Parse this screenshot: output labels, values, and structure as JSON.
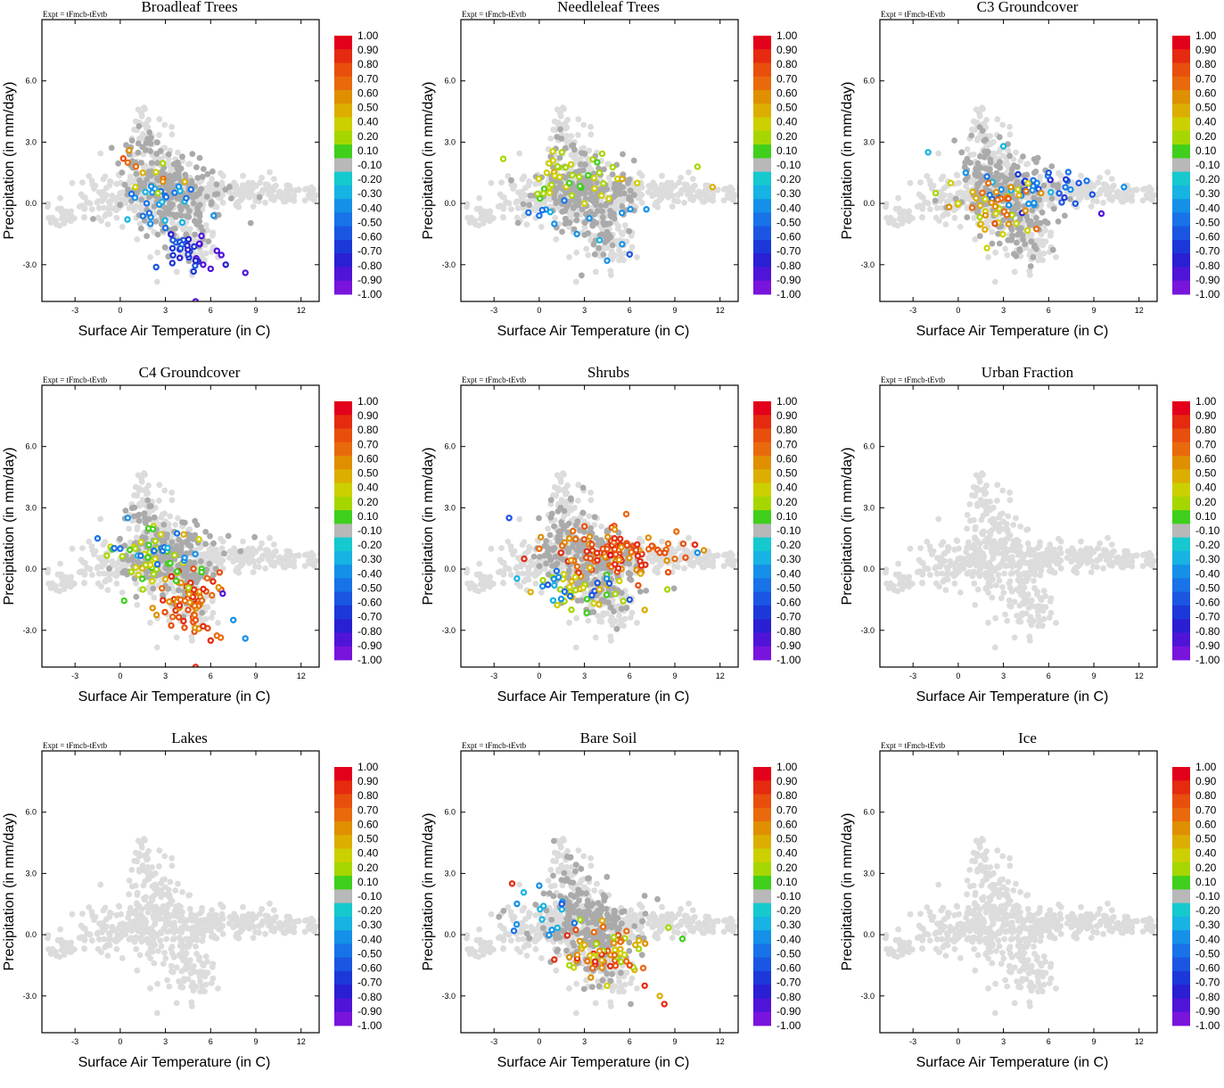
{
  "figure": {
    "experiment_label": "Expt = tFmcb-tEvtb",
    "xlabel": "Surface Air Temperature (in C)",
    "ylabel": "Precipitation (in mm/day)",
    "xticks": [
      -3,
      0,
      3,
      6,
      9,
      12
    ],
    "yticks": [
      6.0,
      3.0,
      0.0,
      -3.0
    ],
    "ytick_labels": [
      "6.0",
      "3.0",
      "0.0",
      "-3.0"
    ],
    "xlim": [
      -5.2,
      13.2
    ],
    "ylim": [
      -4.8,
      9.0
    ],
    "colorbar_labels": [
      "1.00",
      "0.90",
      "0.80",
      "0.70",
      "0.60",
      "0.50",
      "0.40",
      "0.20",
      "0.10",
      "-0.10",
      "-0.20",
      "-0.30",
      "-0.40",
      "-0.50",
      "-0.60",
      "-0.70",
      "-0.80",
      "-0.90",
      "-1.00"
    ],
    "colorbar_colors": [
      "#e3001a",
      "#e52a10",
      "#e84e0c",
      "#e86a0c",
      "#df8f00",
      "#dcae00",
      "#ccd000",
      "#a6d600",
      "#3fcf1c",
      "#b8b8b8",
      "#15c9cf",
      "#17b3e3",
      "#1590e8",
      "#1872e8",
      "#1b56e2",
      "#1c38d8",
      "#2a1fd2",
      "#5014d9",
      "#7914dc"
    ],
    "background_color": "#dcdcdc",
    "neutral_color": "#aaaaaa"
  },
  "chart_data": [
    {
      "type": "scatter",
      "title": "Broadleaf Trees",
      "variant": "broadleaf",
      "xlabel": "Surface Air Temperature (in C)",
      "ylabel": "Precipitation (in mm/day)",
      "xlim": [
        -5.2,
        13.2
      ],
      "ylim": [
        -4.8,
        9.0
      ],
      "colorbar_range": [
        -1.0,
        1.0
      ],
      "background_points": [
        [
          -4.5,
          -0.7
        ],
        [
          -2.0,
          0.0
        ],
        [
          0.0,
          0.5
        ],
        [
          1.2,
          4.6
        ],
        [
          2.0,
          1.5
        ],
        [
          3.0,
          0.8
        ],
        [
          4.0,
          0.6
        ],
        [
          6.0,
          0.4
        ],
        [
          8.0,
          0.6
        ],
        [
          10.0,
          0.6
        ],
        [
          12.5,
          0.4
        ],
        [
          5.0,
          -2.0
        ]
      ],
      "highlight_points": [
        [
          0.2,
          2.2,
          0.8
        ],
        [
          0.5,
          2.0,
          0.7
        ],
        [
          0.6,
          2.6,
          0.6
        ],
        [
          1.5,
          1.5,
          0.5
        ],
        [
          2.5,
          0.5,
          0.2
        ],
        [
          1.0,
          0.8,
          0.3
        ],
        [
          2.0,
          -1.0,
          -0.3
        ],
        [
          3.0,
          -1.2,
          -0.4
        ],
        [
          3.5,
          -1.8,
          -0.5
        ],
        [
          4.0,
          -2.2,
          -0.6
        ],
        [
          4.5,
          -2.5,
          -0.7
        ],
        [
          5.0,
          -2.8,
          -0.8
        ],
        [
          5.5,
          -3.0,
          -0.9
        ],
        [
          6.0,
          -3.2,
          -0.9
        ],
        [
          7.0,
          -3.0,
          -0.8
        ],
        [
          8.3,
          -3.4,
          -0.9
        ],
        [
          5.0,
          -4.8,
          -0.9
        ],
        [
          6.2,
          -0.6,
          -0.3
        ]
      ]
    },
    {
      "type": "scatter",
      "title": "Needleleaf Trees",
      "variant": "needleleaf",
      "xlabel": "Surface Air Temperature (in C)",
      "ylabel": "Precipitation (in mm/day)",
      "xlim": [
        -5.2,
        13.2
      ],
      "ylim": [
        -4.8,
        9.0
      ],
      "colorbar_range": [
        -1.0,
        1.0
      ],
      "background_points": [
        [
          -4.5,
          -0.7
        ],
        [
          -2.0,
          0.0
        ],
        [
          0.0,
          0.5
        ],
        [
          1.2,
          4.6
        ],
        [
          3.0,
          0.8
        ],
        [
          6.0,
          0.4
        ],
        [
          10.0,
          0.6
        ],
        [
          12.5,
          0.4
        ]
      ],
      "highlight_points": [
        [
          0.5,
          1.5,
          0.3
        ],
        [
          1.5,
          2.5,
          0.2
        ],
        [
          2.0,
          1.0,
          0.1
        ],
        [
          3.0,
          0.0,
          0.3
        ],
        [
          4.0,
          1.5,
          0.2
        ],
        [
          5.5,
          1.2,
          0.4
        ],
        [
          6.5,
          1.0,
          0.3
        ],
        [
          10.5,
          1.8,
          0.2
        ],
        [
          11.5,
          0.8,
          0.4
        ],
        [
          0.0,
          -0.6,
          -0.4
        ],
        [
          1.0,
          -1.0,
          -0.3
        ],
        [
          2.5,
          -1.5,
          -0.3
        ],
        [
          4.0,
          -1.8,
          -0.2
        ],
        [
          5.5,
          -2.0,
          -0.3
        ],
        [
          6.0,
          -2.5,
          -0.6
        ],
        [
          4.5,
          -2.8,
          -0.3
        ]
      ]
    },
    {
      "type": "scatter",
      "title": "C3 Groundcover",
      "variant": "c3",
      "xlabel": "Surface Air Temperature (in C)",
      "ylabel": "Precipitation (in mm/day)",
      "xlim": [
        -5.2,
        13.2
      ],
      "ylim": [
        -4.8,
        9.0
      ],
      "colorbar_range": [
        -1.0,
        1.0
      ],
      "background_points": [
        [
          -4.5,
          -0.7
        ],
        [
          -2.0,
          0.0
        ],
        [
          0.0,
          0.5
        ],
        [
          1.2,
          4.6
        ],
        [
          3.0,
          0.8
        ],
        [
          6.0,
          0.4
        ],
        [
          10.0,
          0.6
        ],
        [
          12.5,
          0.4
        ]
      ],
      "highlight_points": [
        [
          -2.0,
          2.5,
          -0.2
        ],
        [
          0.5,
          1.5,
          -0.3
        ],
        [
          3.0,
          2.8,
          -0.2
        ],
        [
          6.0,
          1.5,
          -0.6
        ],
        [
          8.0,
          1.0,
          -0.5
        ],
        [
          9.5,
          -0.5,
          -0.9
        ],
        [
          11.0,
          0.8,
          -0.3
        ],
        [
          2.0,
          1.0,
          0.7
        ],
        [
          3.5,
          0.8,
          0.6
        ],
        [
          4.5,
          0.6,
          0.7
        ],
        [
          5.5,
          0.5,
          0.6
        ],
        [
          1.5,
          -1.0,
          0.5
        ],
        [
          2.5,
          -0.5,
          0.3
        ],
        [
          0.0,
          0.0,
          0.3
        ],
        [
          -1.5,
          0.5,
          0.2
        ]
      ]
    },
    {
      "type": "scatter",
      "title": "C4 Groundcover",
      "variant": "c4",
      "xlabel": "Surface Air Temperature (in C)",
      "ylabel": "Precipitation (in mm/day)",
      "xlim": [
        -5.2,
        13.2
      ],
      "ylim": [
        -4.8,
        9.0
      ],
      "colorbar_range": [
        -1.0,
        1.0
      ],
      "background_points": [
        [
          -4.5,
          -0.7
        ],
        [
          -2.0,
          0.0
        ],
        [
          0.0,
          0.5
        ],
        [
          1.2,
          4.6
        ],
        [
          3.0,
          0.8
        ],
        [
          6.0,
          0.4
        ],
        [
          10.0,
          0.6
        ],
        [
          12.5,
          0.4
        ]
      ],
      "highlight_points": [
        [
          0.5,
          2.5,
          -0.3
        ],
        [
          -1.5,
          1.5,
          -0.4
        ],
        [
          1.0,
          1.0,
          0.2
        ],
        [
          2.0,
          0.2,
          0.3
        ],
        [
          3.0,
          -0.5,
          0.5
        ],
        [
          4.0,
          -1.5,
          0.7
        ],
        [
          4.5,
          -2.0,
          0.8
        ],
        [
          5.0,
          -2.5,
          0.8
        ],
        [
          5.5,
          -2.8,
          0.9
        ],
        [
          6.0,
          -3.5,
          0.9
        ],
        [
          7.5,
          -2.5,
          -0.3
        ],
        [
          6.8,
          -1.2,
          -0.9
        ],
        [
          8.3,
          -3.4,
          -0.3
        ],
        [
          5.0,
          -4.8,
          0.9
        ],
        [
          1.5,
          -1.0,
          0.2
        ]
      ]
    },
    {
      "type": "scatter",
      "title": "Shrubs",
      "variant": "shrubs",
      "xlabel": "Surface Air Temperature (in C)",
      "ylabel": "Precipitation (in mm/day)",
      "xlim": [
        -5.2,
        13.2
      ],
      "ylim": [
        -4.8,
        9.0
      ],
      "colorbar_range": [
        -1.0,
        1.0
      ],
      "background_points": [
        [
          -4.5,
          -0.7
        ],
        [
          -2.0,
          0.0
        ],
        [
          0.0,
          0.5
        ],
        [
          1.2,
          4.6
        ],
        [
          3.0,
          0.8
        ],
        [
          6.0,
          0.4
        ],
        [
          10.0,
          0.6
        ],
        [
          12.5,
          0.4
        ]
      ],
      "highlight_points": [
        [
          -2.0,
          2.5,
          -0.5
        ],
        [
          -1.0,
          0.5,
          0.9
        ],
        [
          0.0,
          1.0,
          0.7
        ],
        [
          2.0,
          1.5,
          0.6
        ],
        [
          3.5,
          1.2,
          0.8
        ],
        [
          5.0,
          1.5,
          0.9
        ],
        [
          6.5,
          1.2,
          0.9
        ],
        [
          8.0,
          0.8,
          0.8
        ],
        [
          9.0,
          0.5,
          0.7
        ],
        [
          10.5,
          0.8,
          -0.3
        ],
        [
          1.0,
          -0.8,
          -0.2
        ],
        [
          4.0,
          -1.0,
          0.4
        ],
        [
          6.0,
          -1.5,
          -0.6
        ],
        [
          7.0,
          -2.0,
          0.5
        ],
        [
          8.5,
          -1.0,
          0.2
        ]
      ]
    },
    {
      "type": "scatter",
      "title": "Urban Fraction",
      "variant": "none",
      "xlabel": "Surface Air Temperature (in C)",
      "ylabel": "Precipitation (in mm/day)",
      "xlim": [
        -5.2,
        13.2
      ],
      "ylim": [
        -4.8,
        9.0
      ],
      "colorbar_range": [
        -1.0,
        1.0
      ],
      "background_points": [
        [
          -4.5,
          -0.7
        ],
        [
          -2.0,
          0.0
        ],
        [
          0.0,
          0.5
        ],
        [
          1.2,
          4.6
        ],
        [
          3.0,
          0.8
        ],
        [
          6.0,
          0.4
        ],
        [
          10.0,
          0.6
        ],
        [
          12.5,
          0.4
        ]
      ],
      "highlight_points": []
    },
    {
      "type": "scatter",
      "title": "Lakes",
      "variant": "none",
      "xlabel": "Surface Air Temperature (in C)",
      "ylabel": "Precipitation (in mm/day)",
      "xlim": [
        -5.2,
        13.2
      ],
      "ylim": [
        -4.8,
        9.0
      ],
      "colorbar_range": [
        -1.0,
        1.0
      ],
      "background_points": [
        [
          -4.5,
          -0.7
        ],
        [
          -2.0,
          0.0
        ],
        [
          0.0,
          0.5
        ],
        [
          1.2,
          4.6
        ],
        [
          3.0,
          0.8
        ],
        [
          6.0,
          0.4
        ],
        [
          10.0,
          0.6
        ],
        [
          12.5,
          0.4
        ]
      ],
      "highlight_points": []
    },
    {
      "type": "scatter",
      "title": "Bare Soil",
      "variant": "bare",
      "xlabel": "Surface Air Temperature (in C)",
      "ylabel": "Precipitation (in mm/day)",
      "xlim": [
        -5.2,
        13.2
      ],
      "ylim": [
        -4.8,
        9.0
      ],
      "colorbar_range": [
        -1.0,
        1.0
      ],
      "background_points": [
        [
          -4.5,
          -0.7
        ],
        [
          -2.0,
          0.0
        ],
        [
          0.0,
          0.5
        ],
        [
          1.2,
          4.6
        ],
        [
          3.0,
          0.8
        ],
        [
          6.0,
          0.4
        ],
        [
          10.0,
          0.6
        ],
        [
          12.5,
          0.4
        ]
      ],
      "highlight_points": [
        [
          -1.8,
          2.5,
          0.9
        ],
        [
          0.0,
          2.4,
          -0.3
        ],
        [
          -1.5,
          0.5,
          -0.3
        ],
        [
          1.5,
          1.5,
          -0.5
        ],
        [
          3.0,
          -0.5,
          0.5
        ],
        [
          4.0,
          -0.8,
          0.6
        ],
        [
          5.0,
          -1.0,
          0.7
        ],
        [
          6.0,
          -1.5,
          0.8
        ],
        [
          7.0,
          -2.5,
          0.9
        ],
        [
          8.3,
          -3.4,
          0.9
        ],
        [
          8.0,
          -3.0,
          0.4
        ],
        [
          9.5,
          -0.2,
          0.1
        ],
        [
          2.0,
          -1.5,
          0.2
        ],
        [
          4.5,
          -2.5,
          0.3
        ]
      ]
    },
    {
      "type": "scatter",
      "title": "Ice",
      "variant": "none",
      "xlabel": "Surface Air Temperature (in C)",
      "ylabel": "Precipitation (in mm/day)",
      "xlim": [
        -5.2,
        13.2
      ],
      "ylim": [
        -4.8,
        9.0
      ],
      "colorbar_range": [
        -1.0,
        1.0
      ],
      "background_points": [
        [
          -4.5,
          -0.7
        ],
        [
          -2.0,
          0.0
        ],
        [
          0.0,
          0.5
        ],
        [
          1.2,
          4.6
        ],
        [
          3.0,
          0.8
        ],
        [
          6.0,
          0.4
        ],
        [
          10.0,
          0.6
        ],
        [
          12.5,
          0.4
        ]
      ],
      "highlight_points": []
    }
  ]
}
